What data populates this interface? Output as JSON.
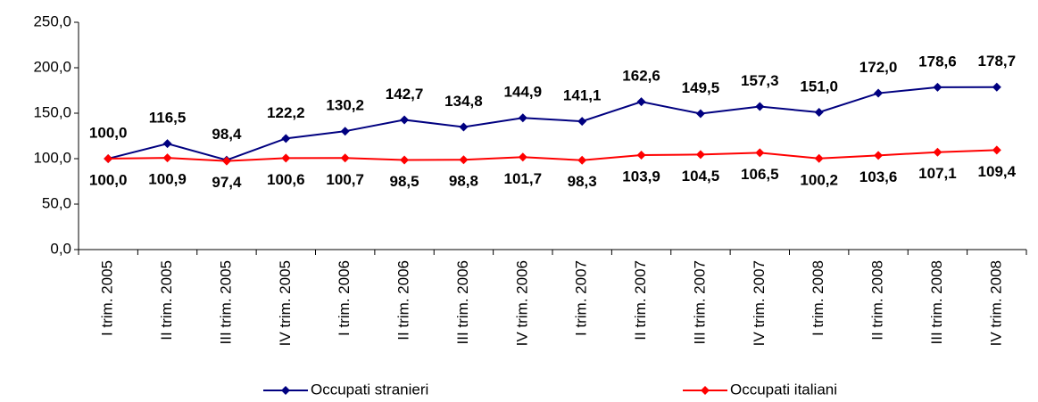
{
  "chart_data": {
    "type": "line",
    "categories": [
      "I trim. 2005",
      "II trim. 2005",
      "III trim. 2005",
      "IV trim. 2005",
      "I trim. 2006",
      "II trim. 2006",
      "III trim. 2006",
      "IV trim. 2006",
      "I trim. 2007",
      "II trim. 2007",
      "III trim. 2007",
      "IV trim. 2007",
      "I trim. 2008",
      "II trim. 2008",
      "III trim. 2008",
      "IV trim. 2008"
    ],
    "series": [
      {
        "name": "Occupati stranieri",
        "color": "#000080",
        "values": [
          100.0,
          116.5,
          98.4,
          122.2,
          130.2,
          142.7,
          134.8,
          144.9,
          141.1,
          162.6,
          149.5,
          157.3,
          151.0,
          172.0,
          178.6,
          178.7
        ],
        "value_labels": [
          "100,0",
          "116,5",
          "98,4",
          "122,2",
          "130,2",
          "142,7",
          "134,8",
          "144,9",
          "141,1",
          "162,6",
          "149,5",
          "157,3",
          "151,0",
          "172,0",
          "178,6",
          "178,7"
        ]
      },
      {
        "name": "Occupati italiani",
        "color": "#ff0000",
        "values": [
          100.0,
          100.9,
          97.4,
          100.6,
          100.7,
          98.5,
          98.8,
          101.7,
          98.3,
          103.9,
          104.5,
          106.5,
          100.2,
          103.6,
          107.1,
          109.4
        ],
        "value_labels": [
          "100,0",
          "100,9",
          "97,4",
          "100,6",
          "100,7",
          "98,5",
          "98,8",
          "101,7",
          "98,3",
          "103,9",
          "104,5",
          "106,5",
          "100,2",
          "103,6",
          "107,1",
          "109,4"
        ]
      }
    ],
    "ylim": [
      0,
      250
    ],
    "yticks": [
      {
        "value": 0,
        "label": "0,0"
      },
      {
        "value": 50,
        "label": "50,0"
      },
      {
        "value": 100,
        "label": "100,0"
      },
      {
        "value": 150,
        "label": "150,0"
      },
      {
        "value": 200,
        "label": "200,0"
      },
      {
        "value": 250,
        "label": "250,0"
      }
    ],
    "legend": "bottom"
  }
}
